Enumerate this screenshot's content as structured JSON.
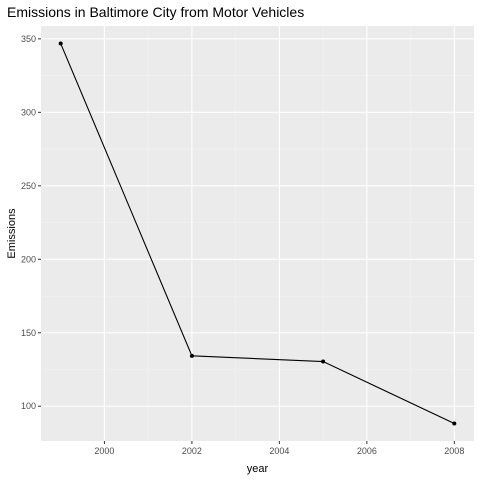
{
  "chart_data": {
    "type": "line",
    "title": "Emissions in Baltimore City from Motor Vehicles",
    "xlabel": "year",
    "ylabel": "Emissions",
    "x": [
      1999,
      2002,
      2005,
      2008
    ],
    "series": [
      {
        "values": [
          346.82,
          134.31,
          130.43,
          88.28
        ]
      }
    ],
    "xlim": [
      1998.55,
      2008.45
    ],
    "ylim": [
      76.35,
      358.75
    ],
    "x_ticks": [
      2000,
      2002,
      2004,
      2006,
      2008
    ],
    "y_ticks": [
      100,
      150,
      200,
      250,
      300,
      350
    ],
    "x_tick_labels": [
      "2000",
      "2002",
      "2004",
      "2006",
      "2008"
    ],
    "y_tick_labels": [
      "100",
      "150",
      "200",
      "250",
      "300",
      "350"
    ],
    "grid": true,
    "legend": "none",
    "colors": {
      "panel_background": "#ebebeb",
      "grid_major": "#ffffff",
      "grid_minor": "#f2f2f2",
      "line": "#000000",
      "point": "#000000",
      "tick_label": "#4d4d4d"
    }
  }
}
